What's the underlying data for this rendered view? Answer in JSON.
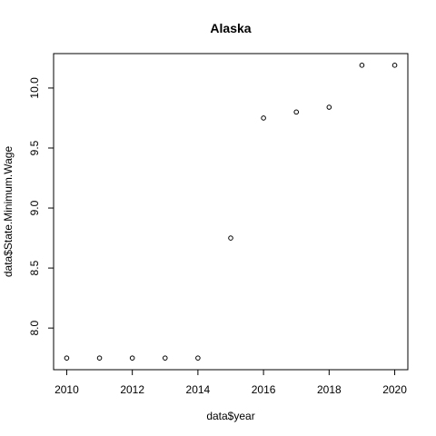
{
  "chart_data": {
    "type": "scatter",
    "title": "Alaska",
    "xlabel": "data$year",
    "ylabel": "data$State.Minimum.Wage",
    "x": [
      2010,
      2011,
      2012,
      2013,
      2014,
      2015,
      2016,
      2017,
      2018,
      2019,
      2020
    ],
    "y": [
      7.75,
      7.75,
      7.75,
      7.75,
      7.75,
      8.75,
      9.75,
      9.8,
      9.84,
      10.19,
      10.19
    ],
    "xlim": [
      2009.6,
      2020.4
    ],
    "ylim": [
      7.653,
      10.287
    ],
    "xticks": [
      "2010",
      "2012",
      "2014",
      "2016",
      "2018",
      "2020"
    ],
    "yticks": [
      "8.0",
      "8.5",
      "9.0",
      "9.5",
      "10.0"
    ],
    "grid": false,
    "marker": "open-circle",
    "marker_color": "#000000"
  }
}
